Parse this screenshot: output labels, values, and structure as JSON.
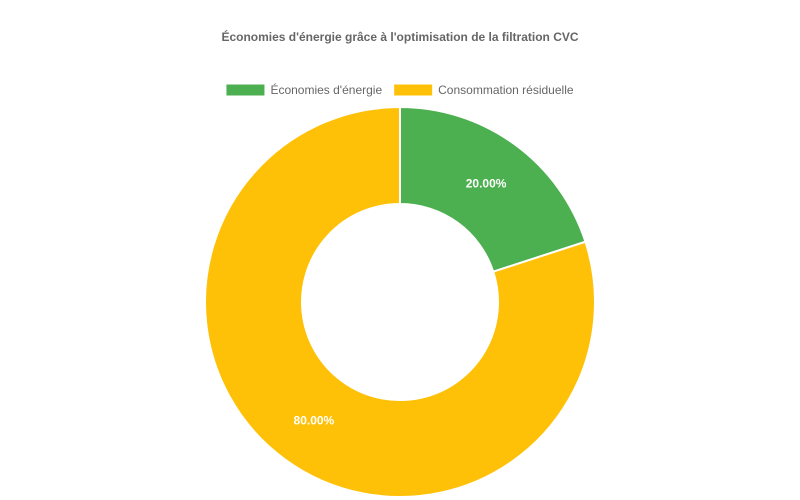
{
  "chart_data": {
    "type": "pie",
    "variant": "doughnut",
    "title": "Économies d'énergie grâce à l'optimisation de la filtration CVC",
    "categories": [
      "Économies d'énergie",
      "Consommation résiduelle"
    ],
    "values": [
      20,
      80
    ],
    "data_labels": [
      "20.00%",
      "80.00%"
    ],
    "colors": [
      "#4CAF50",
      "#FFC107"
    ],
    "legend_position": "top",
    "start_angle": "12 o'clock, clockwise"
  }
}
